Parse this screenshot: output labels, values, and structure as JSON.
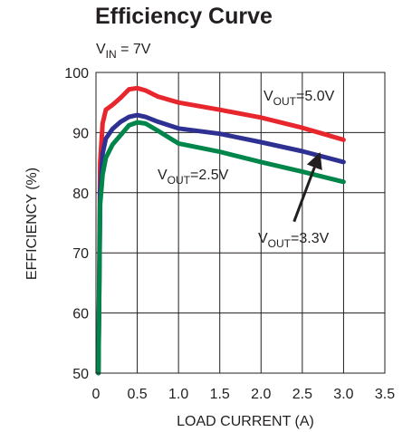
{
  "chart_data": {
    "type": "line",
    "title": "Efficiency Curve",
    "subtitle": {
      "main": "V",
      "sub": "IN",
      "rest": " = 7V"
    },
    "xlabel": "LOAD CURRENT (A)",
    "ylabel": "EFFICIENCY (%)",
    "xlim": [
      0,
      3.5
    ],
    "ylim": [
      50,
      100
    ],
    "xticks": [
      0,
      0.5,
      1.0,
      1.5,
      2.0,
      2.5,
      3.0,
      3.5
    ],
    "xtick_labels": [
      "0",
      "0.5",
      "1.0",
      "1.5",
      "2.0",
      "2.5",
      "3.0",
      "3.5"
    ],
    "yticks": [
      50,
      60,
      70,
      80,
      90,
      100
    ],
    "ytick_labels": [
      "50",
      "60",
      "70",
      "80",
      "90",
      "100"
    ],
    "grid": true,
    "series": [
      {
        "name_parts": {
          "main": "V",
          "sub": "OUT",
          "rest": "=5.0V"
        },
        "color": "#e8262e",
        "x": [
          0.03,
          0.05,
          0.08,
          0.12,
          0.2,
          0.3,
          0.4,
          0.5,
          0.6,
          0.75,
          1.0,
          1.5,
          2.0,
          2.5,
          2.75,
          3.0
        ],
        "y": [
          50,
          85,
          91.5,
          93.8,
          94.6,
          95.8,
          97.2,
          97.4,
          97.0,
          96.0,
          95.0,
          93.8,
          92.5,
          90.8,
          89.8,
          88.8
        ]
      },
      {
        "name_parts": {
          "main": "V",
          "sub": "OUT",
          "rest": "=3.3V"
        },
        "color": "#2e3192",
        "x": [
          0.03,
          0.05,
          0.08,
          0.12,
          0.2,
          0.3,
          0.4,
          0.5,
          0.6,
          0.75,
          1.0,
          1.5,
          2.0,
          2.5,
          3.0
        ],
        "y": [
          50,
          80,
          86.5,
          89.0,
          90.6,
          91.8,
          92.6,
          92.9,
          92.6,
          91.8,
          90.7,
          89.8,
          88.4,
          86.9,
          85.1
        ]
      },
      {
        "name_parts": {
          "main": "V",
          "sub": "OUT",
          "rest": "=2.5V"
        },
        "color": "#00854a",
        "x": [
          0.03,
          0.05,
          0.08,
          0.12,
          0.2,
          0.3,
          0.4,
          0.5,
          0.6,
          0.75,
          1.0,
          1.5,
          2.0,
          2.5,
          3.0
        ],
        "y": [
          50,
          78,
          83.0,
          85.8,
          88.0,
          89.6,
          91.2,
          91.7,
          91.5,
          90.3,
          88.2,
          86.8,
          85.1,
          83.5,
          81.8
        ]
      }
    ],
    "annotation_arrow": {
      "from": [
        2.4,
        75.2
      ],
      "to": [
        2.71,
        86.5
      ]
    }
  }
}
